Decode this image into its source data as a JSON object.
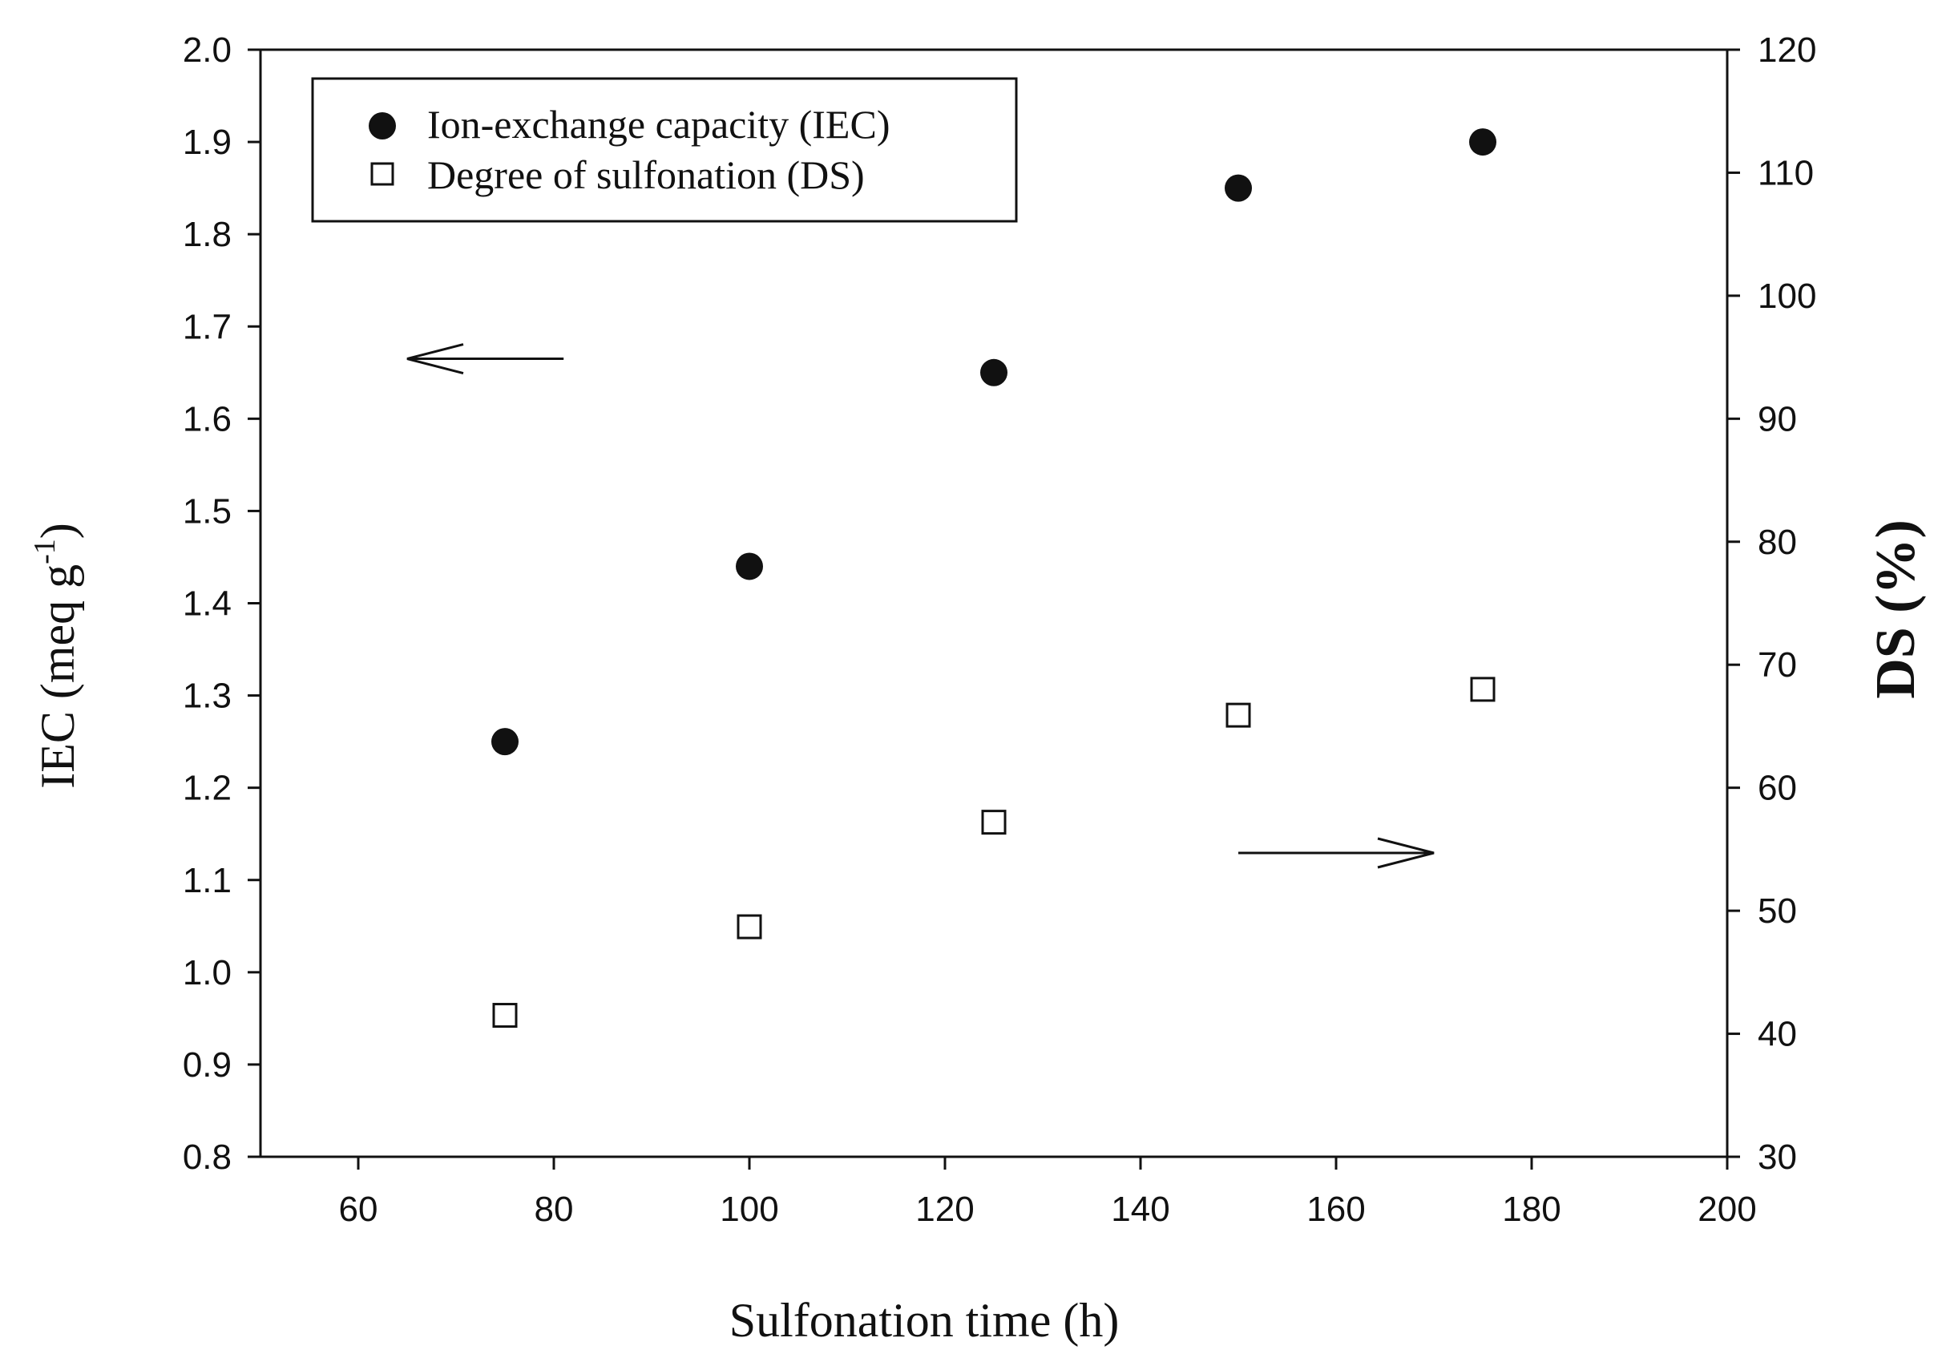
{
  "chart_data": {
    "type": "scatter",
    "xlabel": "Sulfonation time (h)",
    "ylabel_left": "IEC (meq g",
    "ylabel_left_sup": "-1",
    "ylabel_left_close": ")",
    "ylabel_right": "DS (%)",
    "xlim": [
      50,
      200
    ],
    "x_ticks": [
      60,
      80,
      100,
      120,
      140,
      160,
      180,
      200
    ],
    "ylim_left": [
      0.8,
      2.0
    ],
    "y_left_ticks": [
      "0.8",
      "0.9",
      "1.0",
      "1.1",
      "1.2",
      "1.3",
      "1.4",
      "1.5",
      "1.6",
      "1.7",
      "1.8",
      "1.9",
      "2.0"
    ],
    "ylim_right": [
      30,
      120
    ],
    "y_right_ticks": [
      "30",
      "40",
      "50",
      "60",
      "70",
      "80",
      "90",
      "100",
      "110",
      "120"
    ],
    "series": [
      {
        "name": "Ion-exchange capacity (IEC)",
        "axis": "left",
        "marker": "filled-circle",
        "x": [
          75,
          100,
          125,
          150,
          175
        ],
        "y": [
          1.25,
          1.44,
          1.65,
          1.85,
          1.9
        ]
      },
      {
        "name": "Degree of sulfonation (DS)",
        "axis": "right",
        "marker": "open-square",
        "x": [
          75,
          100,
          125,
          150,
          175
        ],
        "y": [
          41.5,
          48.7,
          57.2,
          65.9,
          68.0
        ]
      }
    ],
    "annotations": [
      {
        "type": "arrow",
        "direction": "left",
        "meaning": "IEC series refers to left axis"
      },
      {
        "type": "arrow",
        "direction": "right",
        "meaning": "DS series refers to right axis"
      }
    ],
    "grid": false,
    "legend_position": "top-left"
  }
}
